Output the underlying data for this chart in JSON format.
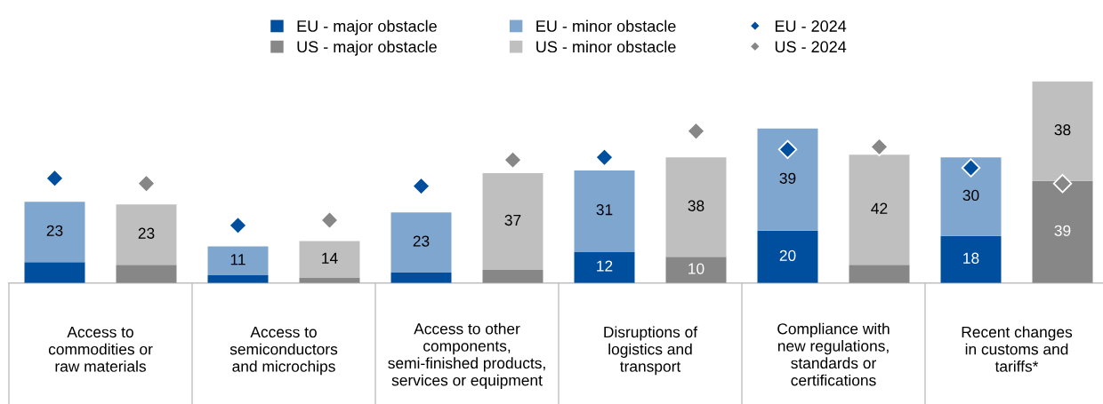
{
  "chart_data": [
    {
      "type": "bar",
      "stacked": true,
      "legend": "top",
      "marker": "diamond",
      "categories": [
        "Access to\ncommodities or\nraw materials",
        "Access to\nsemiconductors\nand microchips",
        "Access to other\ncomponents,\nsemi-finished products,\nservices or equipment",
        "Disruptions of\nlogistics and\ntransport",
        "Compliance with\nnew regulations,\nstandards or\ncertifications",
        "Recent changes\nin customs and\ntariffs*"
      ],
      "series": [
        {
          "name": "EU - major obstacle",
          "color": "#004f9f",
          "values": [
            8,
            3,
            4,
            12,
            20,
            18
          ],
          "value_labels": [
            null,
            null,
            null,
            "12",
            "20",
            "18"
          ]
        },
        {
          "name": "EU - minor obstacle",
          "color": "#7fa6cf",
          "values": [
            23,
            11,
            23,
            31,
            39,
            30
          ],
          "value_labels": [
            "23",
            "11",
            "23",
            "31",
            "39",
            "30"
          ]
        },
        {
          "name": "EU - 2024",
          "type": "scatter",
          "color": "#004f9f",
          "values": [
            40,
            22,
            37,
            48,
            51,
            44
          ]
        }
      ]
    },
    {
      "type": "bar",
      "stacked": true,
      "legend": "top",
      "marker": "diamond",
      "tick_labels": false,
      "categories": [
        null,
        null,
        null,
        null,
        null,
        null
      ],
      "series": [
        {
          "name": "US - major obstacle",
          "color": "#878787",
          "values": [
            7,
            2,
            5,
            10,
            7,
            39
          ],
          "value_labels": [
            null,
            null,
            null,
            "10",
            null,
            "39"
          ]
        },
        {
          "name": "US - minor obstacle",
          "color": "#bfbfbf",
          "values": [
            23,
            14,
            37,
            38,
            42,
            38
          ],
          "value_labels": [
            "23",
            "14",
            "37",
            "38",
            "42",
            "38"
          ]
        },
        {
          "name": "US - 2024",
          "type": "scatter",
          "color": "#878787",
          "values": [
            38,
            24,
            47,
            58,
            52,
            38
          ]
        }
      ]
    }
  ]
}
